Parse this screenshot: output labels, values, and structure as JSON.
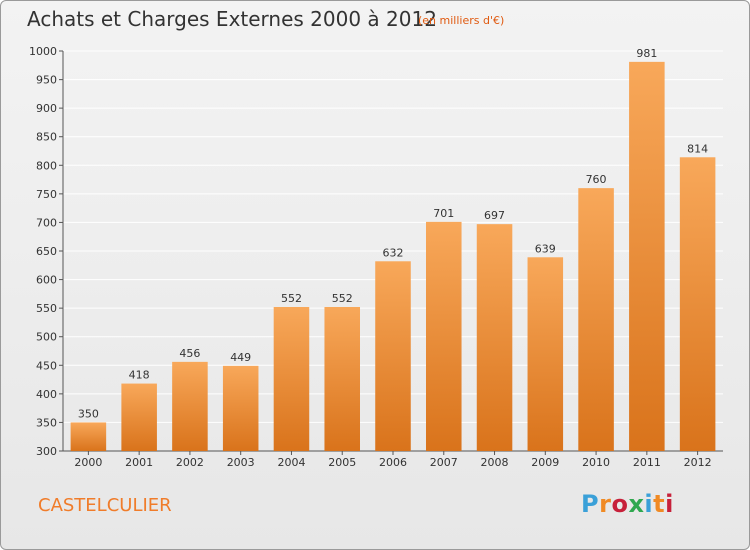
{
  "header": {
    "title": "Achats et Charges Externes 2000 à 2012",
    "unit": "(en milliers d'€)"
  },
  "footer": {
    "commune": "CASTELCULIER",
    "brand": "Proxiti",
    "brand_colors": [
      "#3aa0d8",
      "#f08a24",
      "#c7203a",
      "#2fa84f",
      "#3aa0d8",
      "#f08a24",
      "#c7203a"
    ]
  },
  "colors": {
    "bar_light": "#f8a85a",
    "bar_dark": "#d9731b",
    "grid": "#ffffff",
    "axis": "#555555"
  },
  "chart_data": {
    "type": "bar",
    "categories": [
      "2000",
      "2001",
      "2002",
      "2003",
      "2004",
      "2005",
      "2006",
      "2007",
      "2008",
      "2009",
      "2010",
      "2011",
      "2012"
    ],
    "values": [
      350,
      418,
      456,
      449,
      552,
      552,
      632,
      701,
      697,
      639,
      760,
      981,
      814
    ],
    "ylim": [
      300,
      1000
    ],
    "yticks": [
      300,
      350,
      400,
      450,
      500,
      550,
      600,
      650,
      700,
      750,
      800,
      850,
      900,
      950,
      1000
    ],
    "grid": true,
    "legend": "none"
  }
}
